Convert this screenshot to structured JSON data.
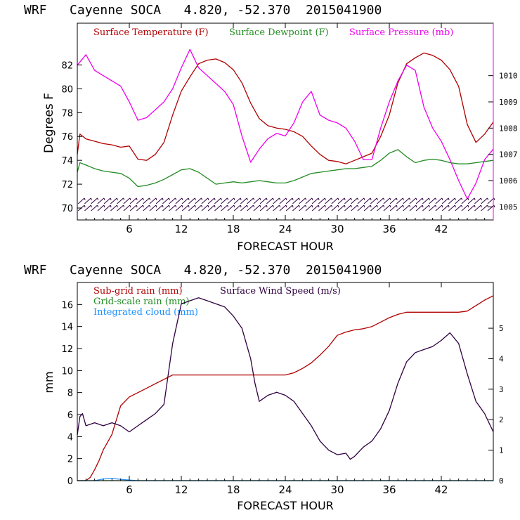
{
  "colors": {
    "temperature": "#b00000",
    "dewpoint": "#228b22",
    "pressure": "#ee00ee",
    "subgrid_rain": "#b00000",
    "gridscale_rain": "#228b22",
    "cloud": "#1e90ff",
    "wind_speed": "#300040",
    "axes": "#000000"
  },
  "chart_data": [
    {
      "type": "line",
      "title": "WRF   Cayenne SOCA   4.820, -52.370  2015041900",
      "xlabel": "FORECAST HOUR",
      "ylabel": "Degrees F",
      "xlim": [
        0,
        48
      ],
      "ylim": [
        69,
        85.5
      ],
      "y2lim": [
        1004.5,
        1012
      ],
      "x_ticks": [
        6,
        12,
        18,
        24,
        30,
        36,
        42
      ],
      "y_ticks": [
        70,
        72,
        74,
        76,
        78,
        80,
        82
      ],
      "y2_ticks": [
        1005,
        1006,
        1007,
        1008,
        1009,
        1010
      ],
      "grid": false,
      "legend_placement": "top-left",
      "series": [
        {
          "name": "Surface Temperature (F)",
          "axis": "left",
          "x": [
            0,
            0.3,
            1,
            2,
            3,
            4,
            5,
            6,
            7,
            8,
            9,
            10,
            11,
            12,
            13,
            14,
            15,
            16,
            17,
            18,
            19,
            20,
            21,
            22,
            23,
            24,
            25,
            26,
            27,
            28,
            29,
            30,
            31,
            32,
            33,
            34,
            35,
            36,
            37,
            38,
            39,
            40,
            41,
            42,
            43,
            44,
            45,
            46,
            47,
            48
          ],
          "y": [
            74.5,
            76.2,
            75.8,
            75.6,
            75.4,
            75.3,
            75.1,
            75.2,
            74.1,
            74.0,
            74.5,
            75.5,
            77.8,
            79.8,
            81.0,
            82.1,
            82.4,
            82.5,
            82.2,
            81.6,
            80.5,
            78.8,
            77.5,
            76.9,
            76.7,
            76.6,
            76.4,
            76.0,
            75.2,
            74.5,
            74.0,
            73.9,
            73.7,
            74.0,
            74.3,
            74.6,
            76.0,
            77.8,
            80.5,
            82.1,
            82.6,
            83.0,
            82.8,
            82.4,
            81.6,
            80.2,
            77.0,
            75.5,
            76.2,
            77.2
          ]
        },
        {
          "name": "Surface Dewpoint (F)",
          "axis": "left",
          "x": [
            0,
            0.3,
            1,
            2,
            3,
            4,
            5,
            6,
            7,
            8,
            9,
            10,
            11,
            12,
            13,
            14,
            15,
            16,
            17,
            18,
            19,
            20,
            21,
            22,
            23,
            24,
            25,
            26,
            27,
            28,
            29,
            30,
            31,
            32,
            33,
            34,
            35,
            36,
            37,
            38,
            39,
            40,
            41,
            42,
            43,
            44,
            45,
            46,
            47,
            48
          ],
          "y": [
            73.0,
            73.8,
            73.6,
            73.3,
            73.1,
            73.0,
            72.9,
            72.5,
            71.8,
            71.9,
            72.1,
            72.4,
            72.8,
            73.2,
            73.3,
            73.0,
            72.5,
            72.0,
            72.1,
            72.2,
            72.1,
            72.2,
            72.3,
            72.2,
            72.1,
            72.1,
            72.3,
            72.6,
            72.9,
            73.0,
            73.1,
            73.2,
            73.3,
            73.3,
            73.4,
            73.5,
            74.0,
            74.6,
            74.9,
            74.3,
            73.8,
            74.0,
            74.1,
            74.0,
            73.8,
            73.7,
            73.7,
            73.8,
            73.9,
            74.0
          ]
        },
        {
          "name": "Surface Pressure (mb)",
          "axis": "right",
          "x": [
            0,
            0.5,
            1,
            2,
            3,
            4,
            5,
            6,
            7,
            8,
            9,
            10,
            11,
            12,
            13,
            14,
            15,
            16,
            17,
            18,
            19,
            20,
            21,
            22,
            23,
            24,
            25,
            26,
            27,
            28,
            29,
            30,
            31,
            32,
            33,
            34,
            35,
            36,
            37,
            38,
            39,
            40,
            41,
            42,
            43,
            44,
            45,
            46,
            47,
            48
          ],
          "y": [
            1010.4,
            1010.6,
            1010.8,
            1010.2,
            1010.0,
            1009.8,
            1009.6,
            1009.0,
            1008.3,
            1008.4,
            1008.7,
            1009.0,
            1009.5,
            1010.3,
            1011.0,
            1010.3,
            1010.0,
            1009.7,
            1009.4,
            1008.9,
            1007.7,
            1006.7,
            1007.2,
            1007.6,
            1007.8,
            1007.7,
            1008.2,
            1009.0,
            1009.4,
            1008.5,
            1008.3,
            1008.2,
            1008.0,
            1007.5,
            1006.8,
            1006.8,
            1008.0,
            1009.0,
            1009.8,
            1010.4,
            1010.2,
            1008.8,
            1008.0,
            1007.5,
            1006.8,
            1006.0,
            1005.3,
            1005.9,
            1006.8,
            1007.2
          ]
        }
      ],
      "wind_barb_rows": 2
    },
    {
      "type": "line",
      "title": "WRF   Cayenne SOCA   4.820, -52.370  2015041900",
      "xlabel": "FORECAST HOUR",
      "ylabel": "mm",
      "xlim": [
        0,
        48
      ],
      "ylim": [
        0,
        18
      ],
      "y2lim": [
        0,
        6.5
      ],
      "x_ticks": [
        6,
        12,
        18,
        24,
        30,
        36,
        42
      ],
      "y_ticks": [
        0,
        2,
        4,
        6,
        8,
        10,
        12,
        14,
        16
      ],
      "y2_ticks": [
        0,
        1,
        2,
        3,
        4,
        5
      ],
      "grid": false,
      "legend_placement": "top-left",
      "series": [
        {
          "name": "Sub-grid rain (mm)",
          "axis": "left",
          "x": [
            0,
            1,
            1.5,
            2,
            2.5,
            3,
            3.5,
            4,
            4.5,
            5,
            6,
            7,
            8,
            9,
            10,
            11,
            12,
            13,
            14,
            15,
            16,
            17,
            18,
            19,
            20,
            21,
            22,
            23,
            24,
            25,
            26,
            27,
            28,
            29,
            30,
            31,
            32,
            33,
            34,
            35,
            36,
            37,
            38,
            39,
            40,
            41,
            42,
            43,
            44,
            45,
            46,
            47,
            48
          ],
          "y": [
            0,
            0,
            0.3,
            1.0,
            1.8,
            2.8,
            3.5,
            4.2,
            5.5,
            6.8,
            7.6,
            8.0,
            8.4,
            8.8,
            9.2,
            9.6,
            9.6,
            9.6,
            9.6,
            9.6,
            9.6,
            9.6,
            9.6,
            9.6,
            9.6,
            9.6,
            9.6,
            9.6,
            9.6,
            9.8,
            10.2,
            10.7,
            11.4,
            12.2,
            13.2,
            13.5,
            13.7,
            13.8,
            14.0,
            14.4,
            14.8,
            15.1,
            15.3,
            15.3,
            15.3,
            15.3,
            15.3,
            15.3,
            15.3,
            15.4,
            15.9,
            16.4,
            16.8
          ]
        },
        {
          "name": "Grid-scale rain (mm)",
          "axis": "left",
          "x": [
            0,
            48
          ],
          "y": [
            0,
            0
          ]
        },
        {
          "name": "Integrated cloud (mm)",
          "axis": "left",
          "x": [
            0,
            2,
            3,
            4,
            5,
            6,
            7,
            48
          ],
          "y": [
            0,
            0,
            0.15,
            0.2,
            0.12,
            0.05,
            0,
            0
          ]
        },
        {
          "name": "Surface Wind Speed (m/s)",
          "axis": "right",
          "x": [
            0,
            0.3,
            0.6,
            1,
            2,
            3,
            4,
            5,
            6,
            7,
            8,
            9,
            10,
            11,
            12,
            13,
            14,
            15,
            16,
            17,
            18,
            19,
            20,
            20.5,
            21,
            22,
            23,
            24,
            25,
            26,
            27,
            28,
            29,
            30,
            31,
            31.5,
            32,
            33,
            34,
            35,
            36,
            37,
            38,
            39,
            40,
            41,
            42,
            43,
            44,
            45,
            46,
            46.5,
            47,
            47.5,
            48
          ],
          "y": [
            1.5,
            2.1,
            2.2,
            1.8,
            1.9,
            1.8,
            1.9,
            1.8,
            1.6,
            1.8,
            2.0,
            2.2,
            2.5,
            4.5,
            5.8,
            5.9,
            6.0,
            5.9,
            5.8,
            5.7,
            5.4,
            5.0,
            4.0,
            3.2,
            2.6,
            2.8,
            2.9,
            2.8,
            2.6,
            2.2,
            1.8,
            1.3,
            1.0,
            0.85,
            0.9,
            0.7,
            0.8,
            1.1,
            1.3,
            1.7,
            2.3,
            3.2,
            3.9,
            4.2,
            4.3,
            4.4,
            4.6,
            4.85,
            4.5,
            3.5,
            2.6,
            2.4,
            2.2,
            1.9,
            1.6
          ]
        }
      ]
    }
  ]
}
